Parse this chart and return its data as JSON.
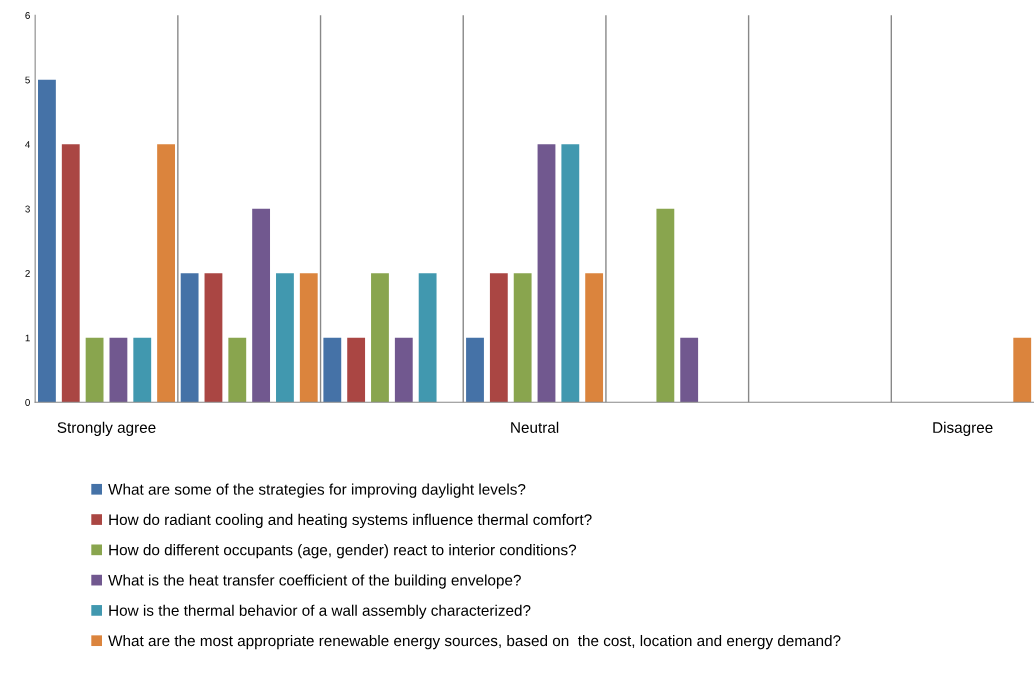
{
  "chart_data": {
    "type": "bar",
    "categories": [
      "Strongly agree",
      null,
      null,
      "Neutral",
      null,
      null,
      "Disagree"
    ],
    "series": [
      {
        "name": "What are some of the strategies for improving daylight levels?",
        "color": "#4572a7",
        "values": [
          5,
          2,
          1,
          1,
          0,
          0,
          0
        ]
      },
      {
        "name": "How do radiant cooling and heating systems influence thermal comfort?",
        "color": "#aa4643",
        "values": [
          4,
          2,
          1,
          2,
          0,
          0,
          0
        ]
      },
      {
        "name": "How do different occupants (age, gender) react to interior conditions?",
        "color": "#89a54e",
        "values": [
          1,
          1,
          2,
          2,
          3,
          0,
          0
        ]
      },
      {
        "name": "What is the heat transfer coefficient of the building envelope?",
        "color": "#71588f",
        "values": [
          1,
          3,
          1,
          4,
          1,
          0,
          0
        ]
      },
      {
        "name": "How is the thermal behavior of a wall assembly characterized?",
        "color": "#4198af",
        "values": [
          1,
          2,
          2,
          4,
          0,
          0,
          0
        ]
      },
      {
        "name": "What are the most appropriate renewable energy sources, based on  the cost, location and energy demand?",
        "color": "#db843d",
        "values": [
          4,
          2,
          0,
          2,
          0,
          0,
          1
        ]
      }
    ],
    "ylim": [
      0,
      6
    ],
    "yticks": [
      0,
      1,
      2,
      3,
      4,
      5,
      6
    ],
    "grid": "x",
    "legend": "bottom"
  }
}
